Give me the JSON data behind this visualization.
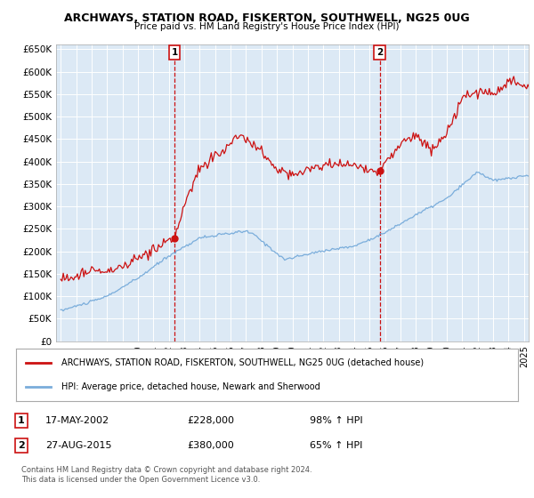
{
  "title": "ARCHWAYS, STATION ROAD, FISKERTON, SOUTHWELL, NG25 0UG",
  "subtitle": "Price paid vs. HM Land Registry's House Price Index (HPI)",
  "ylim": [
    0,
    660000
  ],
  "yticks": [
    0,
    50000,
    100000,
    150000,
    200000,
    250000,
    300000,
    350000,
    400000,
    450000,
    500000,
    550000,
    600000,
    650000
  ],
  "xlim_start": 1994.7,
  "xlim_end": 2025.3,
  "background_color": "#dce9f5",
  "plot_bg": "#dce9f5",
  "hpi_color": "#7aaddb",
  "price_color": "#cc1111",
  "transaction1": {
    "label": "1",
    "date": "17-MAY-2002",
    "price": 228000,
    "x": 2002.37
  },
  "transaction2": {
    "label": "2",
    "date": "27-AUG-2015",
    "price": 380000,
    "x": 2015.65
  },
  "legend_price_label": "ARCHWAYS, STATION ROAD, FISKERTON, SOUTHWELL, NG25 0UG (detached house)",
  "legend_hpi_label": "HPI: Average price, detached house, Newark and Sherwood",
  "footer1": "Contains HM Land Registry data © Crown copyright and database right 2024.",
  "footer2": "This data is licensed under the Open Government Licence v3.0.",
  "table_row1": [
    "1",
    "17-MAY-2002",
    "£228,000",
    "98% ↑ HPI"
  ],
  "table_row2": [
    "2",
    "27-AUG-2015",
    "£380,000",
    "65% ↑ HPI"
  ]
}
